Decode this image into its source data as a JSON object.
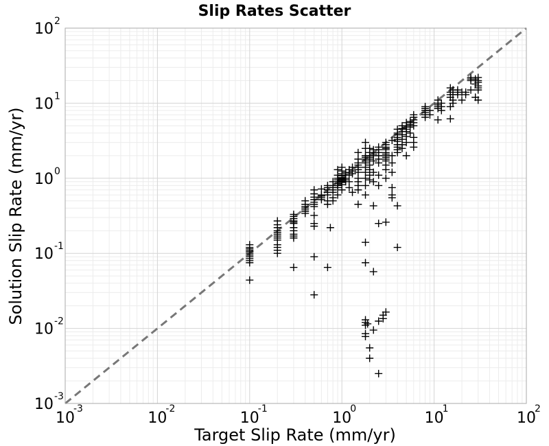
{
  "chart_data": {
    "type": "scatter",
    "title": "Slip Rates Scatter",
    "xlabel": "Target Slip Rate (mm/yr)",
    "ylabel": "Solution Slip Rate (mm/yr)",
    "xscale": "log",
    "yscale": "log",
    "xlim": [
      0.001,
      100
    ],
    "ylim": [
      0.001,
      100
    ],
    "grid": true,
    "legend": "none",
    "marker": "plus",
    "marker_color": "#000000",
    "reference_line": {
      "style": "dashed",
      "color": "#777777",
      "from": [
        0.001,
        0.001
      ],
      "to": [
        100,
        100
      ]
    },
    "tick_labels": {
      "x": [
        {
          "base": "10",
          "exp": "-3",
          "value": 0.001
        },
        {
          "base": "10",
          "exp": "-2",
          "value": 0.01
        },
        {
          "base": "10",
          "exp": "-1",
          "value": 0.1
        },
        {
          "base": "10",
          "exp": "0",
          "value": 1
        },
        {
          "base": "10",
          "exp": "1",
          "value": 10
        },
        {
          "base": "10",
          "exp": "2",
          "value": 100
        }
      ],
      "y": [
        {
          "base": "10",
          "exp": "-3",
          "value": 0.001
        },
        {
          "base": "10",
          "exp": "-2",
          "value": 0.01
        },
        {
          "base": "10",
          "exp": "-1",
          "value": 0.1
        },
        {
          "base": "10",
          "exp": "0",
          "value": 1
        },
        {
          "base": "10",
          "exp": "1",
          "value": 10
        },
        {
          "base": "10",
          "exp": "2",
          "value": 100
        }
      ]
    },
    "points": [
      [
        0.1,
        0.13
      ],
      [
        0.1,
        0.12
      ],
      [
        0.1,
        0.115
      ],
      [
        0.1,
        0.11
      ],
      [
        0.1,
        0.105
      ],
      [
        0.1,
        0.1
      ],
      [
        0.1,
        0.095
      ],
      [
        0.1,
        0.09
      ],
      [
        0.1,
        0.085
      ],
      [
        0.1,
        0.08
      ],
      [
        0.1,
        0.075
      ],
      [
        0.1,
        0.044
      ],
      [
        0.2,
        0.27
      ],
      [
        0.2,
        0.24
      ],
      [
        0.2,
        0.22
      ],
      [
        0.2,
        0.2
      ],
      [
        0.2,
        0.19
      ],
      [
        0.2,
        0.18
      ],
      [
        0.2,
        0.17
      ],
      [
        0.2,
        0.16
      ],
      [
        0.2,
        0.15
      ],
      [
        0.2,
        0.13
      ],
      [
        0.2,
        0.12
      ],
      [
        0.2,
        0.11
      ],
      [
        0.2,
        0.1
      ],
      [
        0.3,
        0.33
      ],
      [
        0.3,
        0.31
      ],
      [
        0.3,
        0.29
      ],
      [
        0.3,
        0.27
      ],
      [
        0.3,
        0.26
      ],
      [
        0.3,
        0.25
      ],
      [
        0.3,
        0.22
      ],
      [
        0.3,
        0.2
      ],
      [
        0.3,
        0.18
      ],
      [
        0.3,
        0.17
      ],
      [
        0.3,
        0.16
      ],
      [
        0.3,
        0.065
      ],
      [
        0.4,
        0.5
      ],
      [
        0.4,
        0.45
      ],
      [
        0.4,
        0.42
      ],
      [
        0.4,
        0.4
      ],
      [
        0.4,
        0.38
      ],
      [
        0.4,
        0.36
      ],
      [
        0.4,
        0.34
      ],
      [
        0.5,
        0.7
      ],
      [
        0.5,
        0.62
      ],
      [
        0.5,
        0.56
      ],
      [
        0.5,
        0.52
      ],
      [
        0.5,
        0.48
      ],
      [
        0.5,
        0.45
      ],
      [
        0.5,
        0.42
      ],
      [
        0.5,
        0.32
      ],
      [
        0.5,
        0.25
      ],
      [
        0.5,
        0.23
      ],
      [
        0.5,
        0.09
      ],
      [
        0.5,
        0.028
      ],
      [
        0.6,
        0.72
      ],
      [
        0.6,
        0.6
      ],
      [
        0.6,
        0.58
      ],
      [
        0.6,
        0.55
      ],
      [
        0.6,
        0.52
      ],
      [
        0.7,
        0.8
      ],
      [
        0.7,
        0.75
      ],
      [
        0.7,
        0.7
      ],
      [
        0.7,
        0.65
      ],
      [
        0.7,
        0.6
      ],
      [
        0.7,
        0.5
      ],
      [
        0.7,
        0.45
      ],
      [
        0.7,
        0.065
      ],
      [
        0.75,
        0.22
      ],
      [
        0.8,
        0.9
      ],
      [
        0.8,
        0.8
      ],
      [
        0.8,
        0.75
      ],
      [
        0.8,
        0.7
      ],
      [
        0.8,
        0.65
      ],
      [
        0.8,
        0.55
      ],
      [
        0.8,
        0.5
      ],
      [
        0.9,
        1.3
      ],
      [
        0.9,
        1.1
      ],
      [
        0.9,
        1.0
      ],
      [
        0.9,
        0.95
      ],
      [
        0.9,
        0.9
      ],
      [
        0.9,
        0.85
      ],
      [
        0.9,
        0.8
      ],
      [
        0.9,
        0.75
      ],
      [
        0.9,
        0.6
      ],
      [
        1.0,
        1.4
      ],
      [
        1.0,
        1.25
      ],
      [
        1.0,
        1.15
      ],
      [
        1.0,
        1.08
      ],
      [
        1.0,
        1.02
      ],
      [
        1.0,
        0.98
      ],
      [
        1.0,
        0.92
      ],
      [
        1.0,
        0.88
      ],
      [
        1.0,
        0.82
      ],
      [
        1.0,
        0.7
      ],
      [
        1.1,
        1.2
      ],
      [
        1.1,
        1.1
      ],
      [
        1.1,
        1.0
      ],
      [
        1.1,
        0.95
      ],
      [
        1.1,
        0.9
      ],
      [
        1.2,
        1.3
      ],
      [
        1.2,
        1.2
      ],
      [
        1.2,
        1.1
      ],
      [
        1.2,
        0.9
      ],
      [
        1.2,
        0.75
      ],
      [
        1.3,
        1.4
      ],
      [
        1.3,
        1.25
      ],
      [
        1.3,
        1.15
      ],
      [
        1.3,
        0.65
      ],
      [
        1.5,
        2.2
      ],
      [
        1.5,
        1.8
      ],
      [
        1.5,
        1.6
      ],
      [
        1.5,
        1.5
      ],
      [
        1.5,
        1.4
      ],
      [
        1.5,
        1.3
      ],
      [
        1.5,
        1.2
      ],
      [
        1.5,
        1.0
      ],
      [
        1.5,
        0.9
      ],
      [
        1.5,
        0.8
      ],
      [
        1.5,
        0.7
      ],
      [
        1.5,
        0.45
      ],
      [
        1.8,
        3.0
      ],
      [
        1.8,
        2.5
      ],
      [
        1.8,
        2.0
      ],
      [
        1.8,
        1.9
      ],
      [
        1.8,
        1.8
      ],
      [
        1.8,
        1.7
      ],
      [
        1.8,
        1.6
      ],
      [
        1.8,
        1.4
      ],
      [
        1.8,
        1.2
      ],
      [
        1.8,
        1.0
      ],
      [
        1.8,
        0.8
      ],
      [
        1.8,
        0.6
      ],
      [
        1.8,
        0.14
      ],
      [
        1.8,
        0.075
      ],
      [
        1.8,
        0.013
      ],
      [
        1.8,
        0.012
      ],
      [
        1.8,
        0.011
      ],
      [
        1.8,
        0.0085
      ],
      [
        1.8,
        0.0078
      ],
      [
        1.9,
        0.0115
      ],
      [
        2.0,
        2.5
      ],
      [
        2.0,
        2.2
      ],
      [
        2.0,
        2.0
      ],
      [
        2.0,
        1.9
      ],
      [
        2.0,
        1.8
      ],
      [
        2.0,
        1.5
      ],
      [
        2.0,
        1.3
      ],
      [
        2.0,
        1.1
      ],
      [
        2.0,
        0.95
      ],
      [
        2.0,
        0.0055
      ],
      [
        2.0,
        0.004
      ],
      [
        2.2,
        2.4
      ],
      [
        2.2,
        2.2
      ],
      [
        2.2,
        2.1
      ],
      [
        2.2,
        2.0
      ],
      [
        2.2,
        1.7
      ],
      [
        2.2,
        1.2
      ],
      [
        2.2,
        0.9
      ],
      [
        2.2,
        0.43
      ],
      [
        2.2,
        0.057
      ],
      [
        2.2,
        0.0095
      ],
      [
        2.5,
        2.6
      ],
      [
        2.5,
        2.4
      ],
      [
        2.5,
        2.2
      ],
      [
        2.5,
        2.0
      ],
      [
        2.5,
        1.8
      ],
      [
        2.5,
        1.6
      ],
      [
        2.5,
        1.1
      ],
      [
        2.5,
        0.8
      ],
      [
        2.5,
        0.25
      ],
      [
        2.5,
        0.0125
      ],
      [
        2.5,
        0.0025
      ],
      [
        2.8,
        0.015
      ],
      [
        2.8,
        0.0135
      ],
      [
        3.0,
        3.0
      ],
      [
        3.0,
        2.8
      ],
      [
        3.0,
        2.6
      ],
      [
        3.0,
        2.5
      ],
      [
        3.0,
        2.4
      ],
      [
        3.0,
        2.2
      ],
      [
        3.0,
        2.1
      ],
      [
        3.0,
        2.0
      ],
      [
        3.0,
        1.9
      ],
      [
        3.0,
        1.8
      ],
      [
        3.0,
        1.7
      ],
      [
        3.0,
        1.5
      ],
      [
        3.0,
        1.3
      ],
      [
        3.0,
        1.0
      ],
      [
        3.0,
        0.26
      ],
      [
        3.0,
        0.0165
      ],
      [
        3.5,
        3.2
      ],
      [
        3.5,
        2.0
      ],
      [
        3.5,
        1.6
      ],
      [
        3.5,
        1.2
      ],
      [
        3.5,
        0.75
      ],
      [
        3.5,
        0.6
      ],
      [
        3.5,
        0.55
      ],
      [
        4.0,
        4.5
      ],
      [
        4.0,
        4.0
      ],
      [
        4.0,
        3.8
      ],
      [
        4.0,
        3.5
      ],
      [
        4.0,
        3.3
      ],
      [
        4.0,
        3.1
      ],
      [
        4.0,
        2.8
      ],
      [
        4.0,
        2.6
      ],
      [
        4.0,
        2.4
      ],
      [
        4.0,
        2.2
      ],
      [
        4.0,
        0.43
      ],
      [
        4.0,
        0.12
      ],
      [
        4.5,
        5.0
      ],
      [
        4.5,
        4.6
      ],
      [
        4.5,
        4.2
      ],
      [
        4.5,
        3.8
      ],
      [
        4.5,
        3.3
      ],
      [
        4.5,
        2.8
      ],
      [
        4.5,
        2.5
      ],
      [
        5.0,
        5.5
      ],
      [
        5.0,
        5.0
      ],
      [
        5.0,
        4.8
      ],
      [
        5.0,
        4.5
      ],
      [
        5.0,
        4.2
      ],
      [
        5.0,
        3.6
      ],
      [
        5.0,
        3.0
      ],
      [
        5.0,
        2.0
      ],
      [
        5.5,
        5.7
      ],
      [
        5.5,
        5.2
      ],
      [
        5.5,
        4.8
      ],
      [
        5.5,
        4.0
      ],
      [
        6.0,
        7.0
      ],
      [
        6.0,
        6.5
      ],
      [
        6.0,
        6.0
      ],
      [
        6.0,
        5.5
      ],
      [
        6.0,
        5.0
      ],
      [
        6.0,
        3.5
      ],
      [
        6.0,
        3.0
      ],
      [
        6.0,
        2.6
      ],
      [
        8.0,
        9.0
      ],
      [
        8.0,
        8.5
      ],
      [
        8.0,
        8.0
      ],
      [
        8.0,
        7.5
      ],
      [
        8.0,
        7.0
      ],
      [
        8.0,
        6.5
      ],
      [
        9.0,
        8.0
      ],
      [
        9.0,
        7.0
      ],
      [
        11.0,
        11.0
      ],
      [
        11.0,
        10.0
      ],
      [
        11.0,
        9.5
      ],
      [
        11.0,
        9.0
      ],
      [
        11.0,
        8.5
      ],
      [
        11.0,
        6.0
      ],
      [
        12.0,
        10.0
      ],
      [
        12.0,
        9.0
      ],
      [
        12.0,
        8.0
      ],
      [
        15.0,
        16.0
      ],
      [
        15.0,
        14.0
      ],
      [
        15.0,
        13.0
      ],
      [
        15.0,
        12.0
      ],
      [
        15.0,
        9.0
      ],
      [
        15.0,
        6.2
      ],
      [
        16.0,
        15.0
      ],
      [
        16.0,
        13.0
      ],
      [
        16.0,
        11.0
      ],
      [
        16.0,
        10.0
      ],
      [
        18.0,
        15.0
      ],
      [
        18.0,
        14.0
      ],
      [
        18.0,
        13.0
      ],
      [
        20.0,
        14.0
      ],
      [
        20.0,
        11.0
      ],
      [
        22.0,
        14.0
      ],
      [
        22.0,
        13.0
      ],
      [
        25.0,
        22.0
      ],
      [
        25.0,
        21.0
      ],
      [
        25.0,
        20.0
      ],
      [
        25.0,
        15.0
      ],
      [
        28.0,
        21.0
      ],
      [
        28.0,
        20.0
      ],
      [
        28.0,
        18.0
      ],
      [
        28.0,
        12.0
      ],
      [
        30.0,
        22.0
      ],
      [
        30.0,
        20.0
      ],
      [
        30.0,
        19.0
      ],
      [
        30.0,
        17.0
      ],
      [
        30.0,
        16.0
      ],
      [
        30.0,
        15.0
      ],
      [
        30.0,
        11.0
      ]
    ]
  }
}
